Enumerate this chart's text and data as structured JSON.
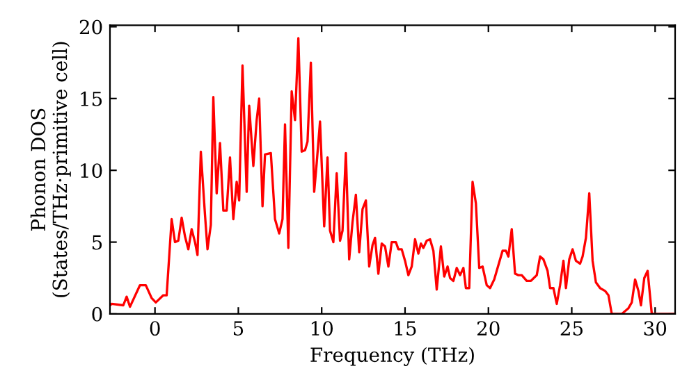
{
  "chart_data": {
    "type": "line",
    "xlabel": "Frequency (THz)",
    "ylabel": "Phonon DOS\n(States/THz·primitive cell)",
    "xlim": [
      -2.7,
      31.2
    ],
    "ylim": [
      0,
      20.1
    ],
    "xticks": [
      0,
      5,
      10,
      15,
      20,
      25,
      30
    ],
    "yticks": [
      0,
      5,
      10,
      15,
      20
    ],
    "marker": "none",
    "line_style": "solid",
    "series": [
      {
        "color": "#ff0000",
        "x": [
          -2.7,
          -2.6,
          -1.9,
          -1.7,
          -1.5,
          -0.9,
          -0.55,
          -0.2,
          0.05,
          0.5,
          0.7,
          1.0,
          1.2,
          1.4,
          1.6,
          1.8,
          2.0,
          2.2,
          2.4,
          2.55,
          2.75,
          3.0,
          3.15,
          3.35,
          3.5,
          3.7,
          3.9,
          4.1,
          4.3,
          4.5,
          4.7,
          4.9,
          5.05,
          5.25,
          5.5,
          5.65,
          5.9,
          6.1,
          6.25,
          6.45,
          6.6,
          6.95,
          7.2,
          7.45,
          7.65,
          7.8,
          8.0,
          8.2,
          8.4,
          8.6,
          8.8,
          9.0,
          9.15,
          9.35,
          9.55,
          9.7,
          9.9,
          10.15,
          10.35,
          10.5,
          10.7,
          10.9,
          11.1,
          11.25,
          11.45,
          11.65,
          11.85,
          12.05,
          12.25,
          12.45,
          12.65,
          12.85,
          13.05,
          13.2,
          13.4,
          13.6,
          13.8,
          14.0,
          14.2,
          14.45,
          14.6,
          14.8,
          15.0,
          15.2,
          15.4,
          15.6,
          15.8,
          15.95,
          16.1,
          16.3,
          16.5,
          16.7,
          16.9,
          17.15,
          17.35,
          17.55,
          17.7,
          17.9,
          18.1,
          18.3,
          18.5,
          18.65,
          18.85,
          19.05,
          19.25,
          19.45,
          19.65,
          19.9,
          20.1,
          20.35,
          20.55,
          20.85,
          21.05,
          21.2,
          21.4,
          21.6,
          21.8,
          22.0,
          22.3,
          22.55,
          22.9,
          23.1,
          23.3,
          23.55,
          23.7,
          23.9,
          24.1,
          24.3,
          24.5,
          24.65,
          24.85,
          25.05,
          25.25,
          25.5,
          25.65,
          25.85,
          26.05,
          26.25,
          26.45,
          26.7,
          27.0,
          27.2,
          27.4,
          28.0,
          28.4,
          28.6,
          28.8,
          29.0,
          29.15,
          29.35,
          29.55,
          29.8,
          31.2
        ],
        "values": [
          0.6,
          0.7,
          0.6,
          1.2,
          0.5,
          2.0,
          2.0,
          1.1,
          0.8,
          1.3,
          1.3,
          6.6,
          5.0,
          5.1,
          6.7,
          5.4,
          4.5,
          5.9,
          5.0,
          4.1,
          11.3,
          6.9,
          4.5,
          6.2,
          15.1,
          8.4,
          11.9,
          7.2,
          7.2,
          10.9,
          6.6,
          9.2,
          7.9,
          17.3,
          8.5,
          14.5,
          10.3,
          13.5,
          15.0,
          7.5,
          11.1,
          11.2,
          6.6,
          5.6,
          6.6,
          13.2,
          4.6,
          15.5,
          13.5,
          19.2,
          11.3,
          11.4,
          12.0,
          17.5,
          8.5,
          10.5,
          13.4,
          6.1,
          10.9,
          5.8,
          5.0,
          9.8,
          5.1,
          5.8,
          11.2,
          3.8,
          6.4,
          8.3,
          4.3,
          7.3,
          7.9,
          3.3,
          4.8,
          5.3,
          2.8,
          4.9,
          4.7,
          3.3,
          5.0,
          5.0,
          4.5,
          4.5,
          3.7,
          2.7,
          3.3,
          5.2,
          4.2,
          4.9,
          4.6,
          5.1,
          5.2,
          4.4,
          1.7,
          4.7,
          2.6,
          3.3,
          2.5,
          2.3,
          3.2,
          2.7,
          3.2,
          1.8,
          1.8,
          9.2,
          7.7,
          3.2,
          3.3,
          2.0,
          1.8,
          2.4,
          3.2,
          4.4,
          4.4,
          4.0,
          5.9,
          2.8,
          2.7,
          2.7,
          2.3,
          2.3,
          2.7,
          4.0,
          3.8,
          3.0,
          1.8,
          1.8,
          0.7,
          2.0,
          3.7,
          1.8,
          3.8,
          4.5,
          3.7,
          3.5,
          4.0,
          5.3,
          8.4,
          3.7,
          2.2,
          1.8,
          1.6,
          1.3,
          0.0,
          0.0,
          0.4,
          0.8,
          2.4,
          1.6,
          0.6,
          2.5,
          3.0,
          0.0,
          0.0
        ]
      }
    ]
  }
}
